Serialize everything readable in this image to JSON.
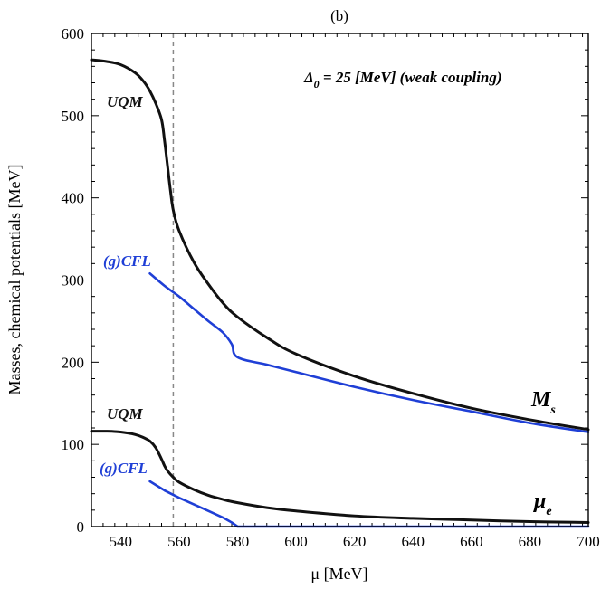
{
  "chart_data": {
    "type": "line",
    "panel_label": "(b)",
    "xlabel": "μ [MeV]",
    "ylabel": "Masses, chemical potentials [MeV]",
    "xlim": [
      530,
      700
    ],
    "ylim": [
      0,
      600
    ],
    "xticks": [
      540,
      560,
      580,
      600,
      620,
      640,
      660,
      680,
      700
    ],
    "yticks": [
      0,
      100,
      200,
      300,
      400,
      500,
      600
    ],
    "grid": false,
    "colors": {
      "uqm": "#111111",
      "gcfl": "#1f3fd6",
      "dashed": "#888888"
    },
    "vline": {
      "x": 558,
      "style": "dashed"
    },
    "annotations": {
      "delta_symbol": "Δ",
      "delta_sub": "0",
      "delta_rest": " = 25 [MeV] (weak coupling)",
      "uqm_upper": "UQM",
      "gcfl_upper": "(g)CFL",
      "uqm_lower": "UQM",
      "gcfl_lower": "(g)CFL",
      "ms_symbol": "M",
      "ms_sub": "s",
      "mue_symbol": "μ",
      "mue_sub": "e"
    },
    "series": [
      {
        "name": "M_s UQM",
        "color": "black",
        "x": [
          530,
          535,
          540,
          545,
          548,
          550,
          552,
          554,
          555,
          556,
          557,
          558,
          560,
          565,
          570,
          575,
          580,
          590,
          600,
          620,
          640,
          660,
          680,
          700
        ],
        "y": [
          568,
          566,
          562,
          552,
          541,
          530,
          515,
          495,
          470,
          440,
          410,
          385,
          360,
          322,
          295,
          272,
          255,
          230,
          210,
          183,
          162,
          144,
          130,
          118
        ]
      },
      {
        "name": "M_s (g)CFL",
        "color": "blue",
        "x": [
          550,
          555,
          560,
          565,
          570,
          575,
          578,
          580,
          590,
          600,
          620,
          640,
          660,
          680,
          700
        ],
        "y": [
          308,
          293,
          280,
          265,
          250,
          236,
          222,
          206,
          197,
          188,
          170,
          154,
          140,
          126,
          115
        ]
      },
      {
        "name": "mu_e UQM",
        "color": "black",
        "x": [
          530,
          535,
          540,
          545,
          548,
          550,
          552,
          554,
          555,
          556,
          558,
          560,
          565,
          570,
          575,
          580,
          590,
          600,
          620,
          640,
          660,
          680,
          700
        ],
        "y": [
          116,
          116,
          115,
          112,
          108,
          104,
          96,
          82,
          74,
          68,
          60,
          54,
          45,
          38,
          33,
          29,
          23,
          19,
          13,
          10,
          8,
          6,
          5
        ]
      },
      {
        "name": "mu_e (g)CFL",
        "color": "blue",
        "x": [
          550,
          555,
          560,
          565,
          570,
          575,
          578,
          580,
          590,
          600,
          620,
          640,
          660,
          680,
          700
        ],
        "y": [
          55,
          44,
          35,
          27,
          19,
          11,
          5,
          0,
          0,
          0,
          0,
          0,
          0,
          0,
          0
        ]
      }
    ]
  }
}
